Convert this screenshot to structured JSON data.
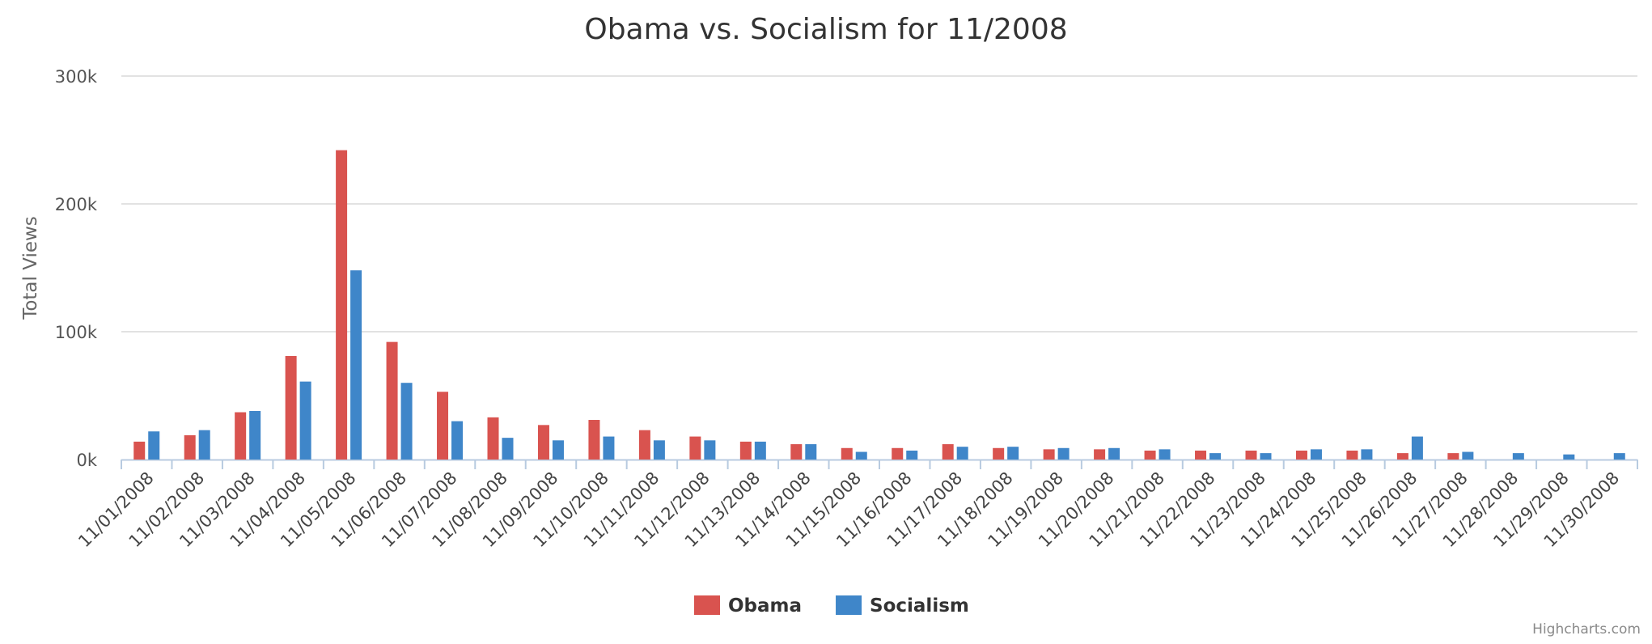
{
  "chart_data": {
    "type": "bar",
    "title": "Obama vs. Socialism for 11/2008",
    "xlabel": "",
    "ylabel": "Total Views",
    "ylim": [
      0,
      300000
    ],
    "yticks": [
      0,
      100000,
      200000,
      300000
    ],
    "ytick_labels": [
      "0k",
      "100k",
      "200k",
      "300k"
    ],
    "grid": true,
    "legend_position": "bottom-center",
    "categories": [
      "11/01/2008",
      "11/02/2008",
      "11/03/2008",
      "11/04/2008",
      "11/05/2008",
      "11/06/2008",
      "11/07/2008",
      "11/08/2008",
      "11/09/2008",
      "11/10/2008",
      "11/11/2008",
      "11/12/2008",
      "11/13/2008",
      "11/14/2008",
      "11/15/2008",
      "11/16/2008",
      "11/17/2008",
      "11/18/2008",
      "11/19/2008",
      "11/20/2008",
      "11/21/2008",
      "11/22/2008",
      "11/23/2008",
      "11/24/2008",
      "11/25/2008",
      "11/26/2008",
      "11/27/2008",
      "11/28/2008",
      "11/29/2008",
      "11/30/2008"
    ],
    "series": [
      {
        "name": "Obama",
        "color": "#d9534f",
        "values": [
          14000,
          19000,
          37000,
          81000,
          242000,
          92000,
          53000,
          33000,
          27000,
          31000,
          23000,
          18000,
          14000,
          12000,
          9000,
          9000,
          12000,
          9000,
          8000,
          8000,
          7000,
          7000,
          7000,
          7000,
          7000,
          5000,
          5000,
          0,
          0,
          0
        ]
      },
      {
        "name": "Socialism",
        "color": "#3f86c9",
        "values": [
          22000,
          23000,
          38000,
          61000,
          148000,
          60000,
          30000,
          17000,
          15000,
          18000,
          15000,
          15000,
          14000,
          12000,
          6000,
          7000,
          10000,
          10000,
          9000,
          9000,
          8000,
          5000,
          5000,
          8000,
          8000,
          18000,
          6000,
          5000,
          4000,
          5000
        ]
      }
    ]
  },
  "credits": "Highcharts.com"
}
